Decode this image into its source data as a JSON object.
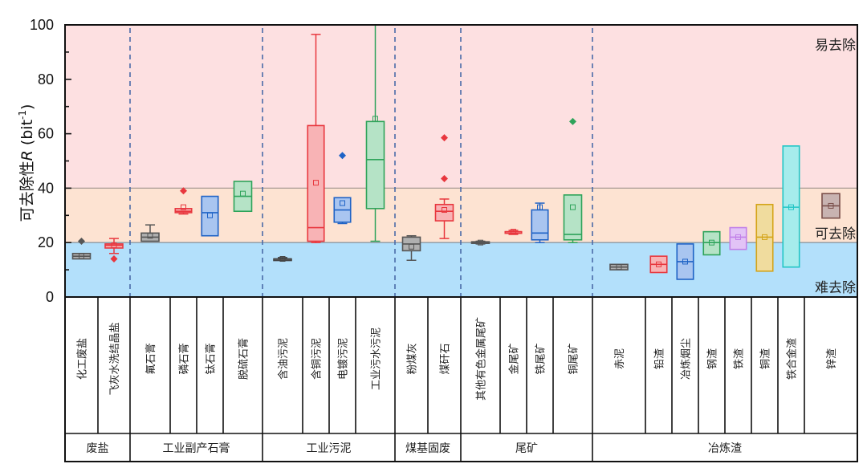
{
  "chart_data": {
    "type": "box",
    "title": "",
    "xlabel": "",
    "ylabel": "可去除性R (bit⁻¹)",
    "ylabel_parts": {
      "prefix": "可去除性",
      "italic": "R",
      "unit_open": " (bit",
      "sup": "-1",
      "unit_close": ")"
    },
    "ylim": [
      0,
      100
    ],
    "yticks": [
      0,
      20,
      40,
      60,
      80,
      100
    ],
    "grid": false,
    "zones": [
      {
        "label": "难去除",
        "from": 0,
        "to": 20,
        "color": "#b3e0fb"
      },
      {
        "label": "可去除",
        "from": 20,
        "to": 40,
        "color": "#fde3d2"
      },
      {
        "label": "易去除",
        "from": 40,
        "to": 100,
        "color": "#fde0e1"
      }
    ],
    "groups": [
      {
        "name": "废盐",
        "categories": [
          "化工废盐",
          "飞灰水洗结晶盐"
        ]
      },
      {
        "name": "工业副产石膏",
        "categories": [
          "氟石膏",
          "磷石膏",
          "钛石膏",
          "脱硫石膏"
        ]
      },
      {
        "name": "工业污泥",
        "categories": [
          "含油污泥",
          "含铜污泥",
          "电镀污泥",
          "工业污水污泥"
        ]
      },
      {
        "name": "煤基固废",
        "categories": [
          "粉煤灰",
          "煤矸石"
        ]
      },
      {
        "name": "尾矿",
        "categories": [
          "其他有色金属尾矿",
          "金尾矿",
          "铁尾矿",
          "铜尾矿"
        ]
      },
      {
        "name": "冶炼渣",
        "categories": [
          "赤泥",
          "铅渣",
          "冶炼烟尘",
          "钢渣",
          "铁渣",
          "铜渣",
          "铁合金渣",
          "锌渣"
        ]
      }
    ],
    "series": [
      {
        "name": "化工废盐",
        "color": "#555555",
        "fill": "#b0b0b0",
        "min": 14,
        "q1": 14,
        "median": 15,
        "q3": 16,
        "max": 16,
        "mean": 15,
        "outliers": [
          20.5
        ]
      },
      {
        "name": "飞灰水洗结晶盐",
        "color": "#e8373e",
        "fill": "#f8b3b5",
        "min": 16,
        "q1": 18,
        "median": 19,
        "q3": 19.5,
        "max": 21.5,
        "mean": 19,
        "outliers": [
          14
        ]
      },
      {
        "name": "氟石膏",
        "color": "#555555",
        "fill": "#b0b0b0",
        "min": 20.5,
        "q1": 20.5,
        "median": 22,
        "q3": 23.5,
        "max": 26.5,
        "mean": 22.5,
        "outliers": []
      },
      {
        "name": "磷石膏",
        "color": "#e8373e",
        "fill": "#f8b3b5",
        "min": 30.5,
        "q1": 31,
        "median": 31.5,
        "q3": 32.5,
        "max": 32.5,
        "mean": 33,
        "outliers": [
          39
        ]
      },
      {
        "name": "钛石膏",
        "color": "#1f63c6",
        "fill": "#a9c5f0",
        "min": 22.5,
        "q1": 22.5,
        "median": 31,
        "q3": 37,
        "max": 37,
        "mean": 30,
        "outliers": []
      },
      {
        "name": "脱硫石膏",
        "color": "#2ea35a",
        "fill": "#b5e3c6",
        "min": 31.5,
        "q1": 31.5,
        "median": 37,
        "q3": 42.5,
        "max": 42.5,
        "mean": 38,
        "outliers": []
      },
      {
        "name": "含油污泥",
        "color": "#444444",
        "fill": "#888888",
        "min": 14,
        "q1": 14,
        "median": 14,
        "q3": 14,
        "max": 14.5,
        "mean": 14,
        "outliers": []
      },
      {
        "name": "含铜污泥",
        "color": "#e8373e",
        "fill": "#f8b3b5",
        "min": 20,
        "q1": 20.5,
        "median": 25.5,
        "q3": 63,
        "max": 96.5,
        "mean": 42,
        "outliers": []
      },
      {
        "name": "电镀污泥",
        "color": "#1f63c6",
        "fill": "#a9c5f0",
        "min": 27,
        "q1": 27.5,
        "median": 32,
        "q3": 36.5,
        "max": 36.5,
        "mean": 34.5,
        "outliers": [
          52
        ]
      },
      {
        "name": "工业污水污泥",
        "color": "#2ea35a",
        "fill": "#b5e3c6",
        "min": 20.5,
        "q1": 32.5,
        "median": 50.5,
        "q3": 64.5,
        "max": 100,
        "mean": 65.5,
        "outliers": []
      },
      {
        "name": "粉煤灰",
        "color": "#555555",
        "fill": "#b0b0b0",
        "min": 13.5,
        "q1": 17,
        "median": 19.5,
        "q3": 22,
        "max": 22.5,
        "mean": 18.5,
        "outliers": []
      },
      {
        "name": "煤矸石",
        "color": "#e8373e",
        "fill": "#f8b3b5",
        "min": 21.5,
        "q1": 28,
        "median": 31.5,
        "q3": 34,
        "max": 36,
        "mean": 32,
        "outliers": [
          43.5,
          58.5
        ]
      },
      {
        "name": "其他有色金属尾矿",
        "color": "#555555",
        "fill": "#b0b0b0",
        "min": 19.5,
        "q1": 19.8,
        "median": 20,
        "q3": 20.3,
        "max": 20.5,
        "mean": 20,
        "outliers": []
      },
      {
        "name": "金尾矿",
        "color": "#e8373e",
        "fill": "#f8b3b5",
        "min": 23,
        "q1": 23.5,
        "median": 24,
        "q3": 24,
        "max": 24.5,
        "mean": 24,
        "outliers": []
      },
      {
        "name": "铁尾矿",
        "color": "#1f63c6",
        "fill": "#a9c5f0",
        "min": 20,
        "q1": 21,
        "median": 23.5,
        "q3": 32,
        "max": 34.5,
        "mean": 33,
        "outliers": []
      },
      {
        "name": "铜尾矿",
        "color": "#2ea35a",
        "fill": "#b5e3c6",
        "min": 20,
        "q1": 21,
        "median": 23,
        "q3": 37.5,
        "max": 37.5,
        "mean": 33,
        "outliers": [
          64.5
        ]
      },
      {
        "name": "赤泥",
        "color": "#555555",
        "fill": "#b0b0b0",
        "min": 10,
        "q1": 10,
        "median": 11,
        "q3": 12,
        "max": 12,
        "mean": 11,
        "outliers": []
      },
      {
        "name": "铅渣",
        "color": "#e8373e",
        "fill": "#f8b3b5",
        "min": 9,
        "q1": 9,
        "median": 12,
        "q3": 15,
        "max": 15,
        "mean": 12,
        "outliers": []
      },
      {
        "name": "冶炼烟尘",
        "color": "#1f63c6",
        "fill": "#a9c5f0",
        "min": 6.5,
        "q1": 6.5,
        "median": 13,
        "q3": 19.5,
        "max": 19.5,
        "mean": 13,
        "outliers": []
      },
      {
        "name": "钢渣",
        "color": "#2ea35a",
        "fill": "#b5e3c6",
        "min": 15.5,
        "q1": 15.5,
        "median": 20,
        "q3": 24,
        "max": 24,
        "mean": 20,
        "outliers": []
      },
      {
        "name": "铁渣",
        "color": "#c17fe8",
        "fill": "#e2c3f6",
        "min": 17.5,
        "q1": 17.5,
        "median": 22,
        "q3": 25.5,
        "max": 25.5,
        "mean": 22,
        "outliers": []
      },
      {
        "name": "铜渣",
        "color": "#d4a418",
        "fill": "#f0dc9e",
        "min": 9.5,
        "q1": 9.5,
        "median": 22,
        "q3": 34,
        "max": 34,
        "mean": 22,
        "outliers": []
      },
      {
        "name": "铁合金渣",
        "color": "#22c6c6",
        "fill": "#a6ecec",
        "min": 11,
        "q1": 11,
        "median": 33,
        "q3": 55.5,
        "max": 55.5,
        "mean": 33,
        "outliers": []
      },
      {
        "name": "锌渣",
        "color": "#7a4f4a",
        "fill": "#c8b3b1",
        "min": 29,
        "q1": 29,
        "median": 33.5,
        "q3": 38,
        "max": 38,
        "mean": 33.5,
        "outliers": []
      }
    ],
    "group_separators": "dashed vertical lines between groups",
    "legend": "none"
  },
  "zone_labels": {
    "easy": "易去除",
    "removable": "可去除",
    "hard": "难去除"
  }
}
